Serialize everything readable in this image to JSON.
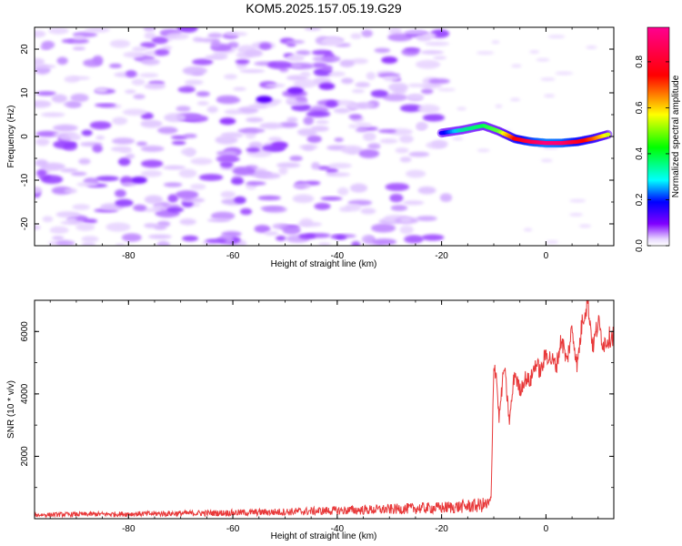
{
  "title": "KOM5.2025.157.05.19.G29",
  "chart_data": [
    {
      "type": "heatmap",
      "xlabel": "Height of straight line (km)",
      "ylabel": "Frequency (Hz)",
      "xlim": [
        -98,
        13
      ],
      "ylim": [
        -25,
        25
      ],
      "xticks": [
        "-80",
        "-60",
        "-40",
        "-20",
        "0"
      ],
      "xtick_values": [
        -80,
        -60,
        -40,
        -20,
        0
      ],
      "yticks": [
        "-20",
        "-10",
        "0",
        "10",
        "20"
      ],
      "ytick_values": [
        -20,
        -10,
        0,
        10,
        20
      ],
      "colorbar": {
        "label": "Normalized spectral amplitude",
        "range": [
          0,
          0.95
        ],
        "ticks": [
          "0.0",
          "0.2",
          "0.4",
          "0.6",
          "0.8"
        ],
        "tick_values": [
          0.0,
          0.2,
          0.4,
          0.6,
          0.8
        ],
        "colormap": "rainbow"
      },
      "signal_track": {
        "x": [
          -20,
          -16,
          -12,
          -9,
          -6,
          -3,
          0,
          3,
          6,
          9,
          12
        ],
        "y": [
          0.8,
          1.5,
          2.5,
          1.2,
          -0.5,
          -1.2,
          -1.5,
          -1.5,
          -1.2,
          -0.5,
          0.5
        ],
        "amplitude": [
          0.25,
          0.4,
          0.45,
          0.5,
          0.75,
          0.85,
          0.92,
          0.9,
          0.8,
          0.7,
          0.55
        ]
      },
      "noise_patches": [
        {
          "x": -54,
          "y": 8.5,
          "amplitude": 0.2
        },
        {
          "x": -48,
          "y": 10.5,
          "amplitude": 0.15
        },
        {
          "x": -78,
          "y": -10,
          "amplitude": 0.15
        },
        {
          "x": -61,
          "y": 3.5,
          "amplitude": 0.12
        },
        {
          "x": -51,
          "y": -2,
          "amplitude": 0.12
        },
        {
          "x": -30,
          "y": 17.5,
          "amplitude": 0.12
        },
        {
          "x": -42,
          "y": 11.5,
          "amplitude": 0.13
        },
        {
          "x": -74,
          "y": 22,
          "amplitude": 0.1
        }
      ],
      "colors": {
        "violet": "#8000ff",
        "blue": "#0000ff",
        "cyan": "#00ffff",
        "green": "#00ff00",
        "yellow": "#ffff00",
        "red": "#ff0000",
        "magenta": "#ff0080"
      }
    },
    {
      "type": "line",
      "xlabel": "Height of straight line (km)",
      "ylabel": "SNR (10 * v/v)",
      "xlim": [
        -98,
        13
      ],
      "ylim": [
        0,
        7000
      ],
      "xticks": [
        "-80",
        "-60",
        "-40",
        "-20",
        "0"
      ],
      "xtick_values": [
        -80,
        -60,
        -40,
        -20,
        0
      ],
      "yticks": [
        "2000",
        "4000",
        "6000"
      ],
      "ytick_values": [
        2000,
        4000,
        6000
      ],
      "series": [
        {
          "color": "#e8393a",
          "x": [
            -98,
            -90,
            -80,
            -70,
            -60,
            -50,
            -40,
            -35,
            -30,
            -25,
            -20,
            -15,
            -11,
            -10.5,
            -10,
            -9.5,
            -9,
            -8,
            -7,
            -6,
            -5,
            -4,
            -3,
            -2,
            -1,
            0,
            1,
            2,
            3,
            4,
            5,
            6,
            7,
            8,
            9,
            10,
            11,
            12,
            13
          ],
          "y": [
            120,
            140,
            150,
            170,
            190,
            220,
            260,
            280,
            300,
            330,
            350,
            400,
            450,
            600,
            5000,
            4600,
            3200,
            4900,
            3100,
            4700,
            4100,
            4500,
            4400,
            5000,
            4700,
            5300,
            5100,
            4900,
            5800,
            5000,
            6100,
            4900,
            6400,
            7000,
            5500,
            6300,
            5600,
            5800,
            5900
          ]
        }
      ]
    }
  ]
}
